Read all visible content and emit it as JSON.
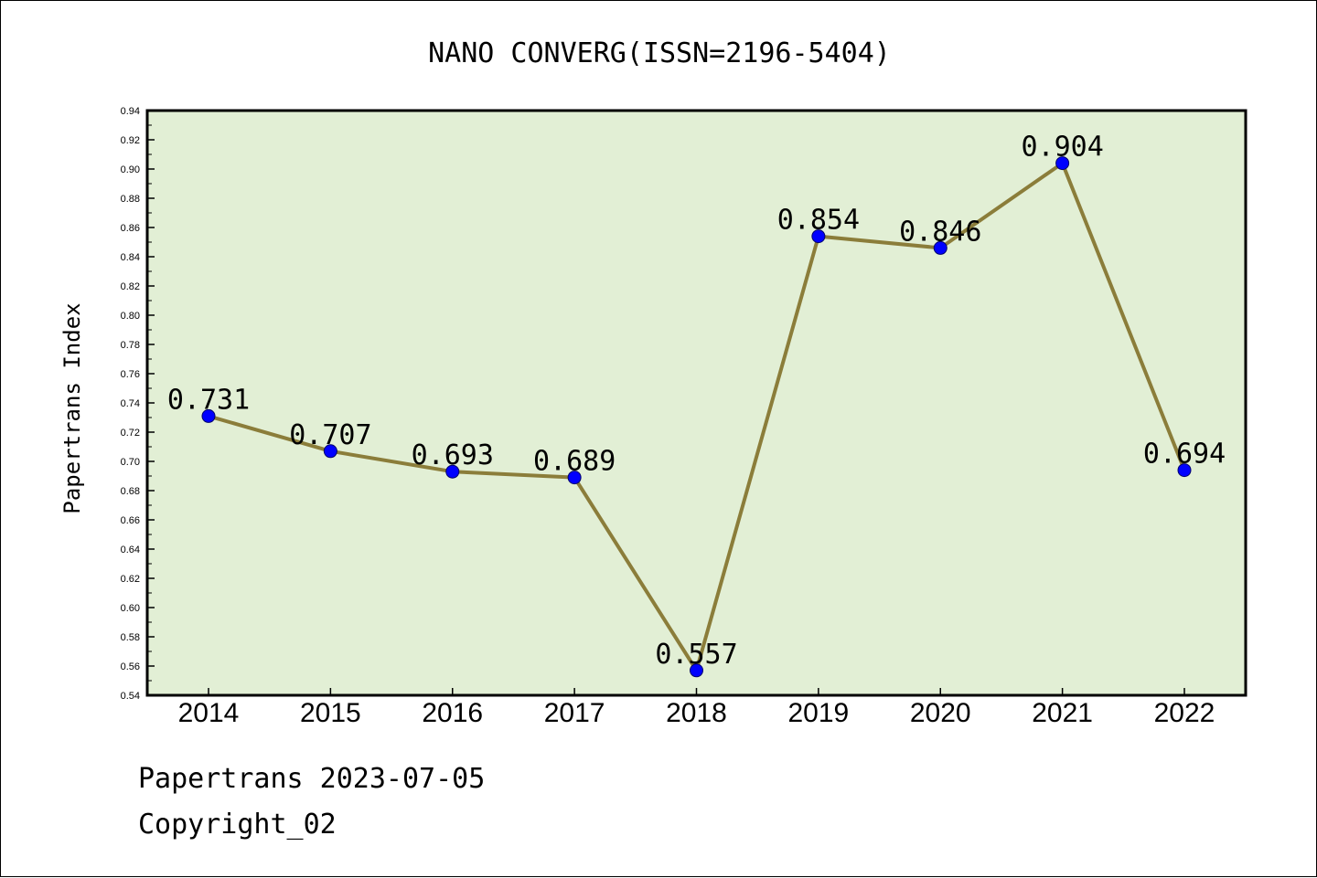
{
  "chart_data": {
    "type": "line",
    "title": "NANO CONVERG(ISSN=2196-5404)",
    "xlabel": "",
    "ylabel": "Papertrans Index",
    "categories": [
      "2014",
      "2015",
      "2016",
      "2017",
      "2018",
      "2019",
      "2020",
      "2021",
      "2022"
    ],
    "values": [
      0.731,
      0.707,
      0.693,
      0.689,
      0.557,
      0.854,
      0.846,
      0.904,
      0.694
    ],
    "data_labels": [
      "0.731",
      "0.707",
      "0.693",
      "0.689",
      "0.557",
      "0.854",
      "0.846",
      "0.904",
      "0.694"
    ],
    "ylim": [
      0.54,
      0.94
    ],
    "yticks": [
      "0.54",
      "0.56",
      "0.58",
      "0.60",
      "0.62",
      "0.64",
      "0.66",
      "0.68",
      "0.70",
      "0.72",
      "0.74",
      "0.76",
      "0.78",
      "0.80",
      "0.82",
      "0.84",
      "0.86",
      "0.88",
      "0.90",
      "0.92",
      "0.94"
    ],
    "grid": false,
    "colors": {
      "plot_background": "#e2efd5",
      "line": "#8b7d3a",
      "marker": "#0000ff"
    }
  },
  "footer": {
    "date_text": "Papertrans 2023-07-05",
    "copyright_text": "Copyright_02"
  }
}
